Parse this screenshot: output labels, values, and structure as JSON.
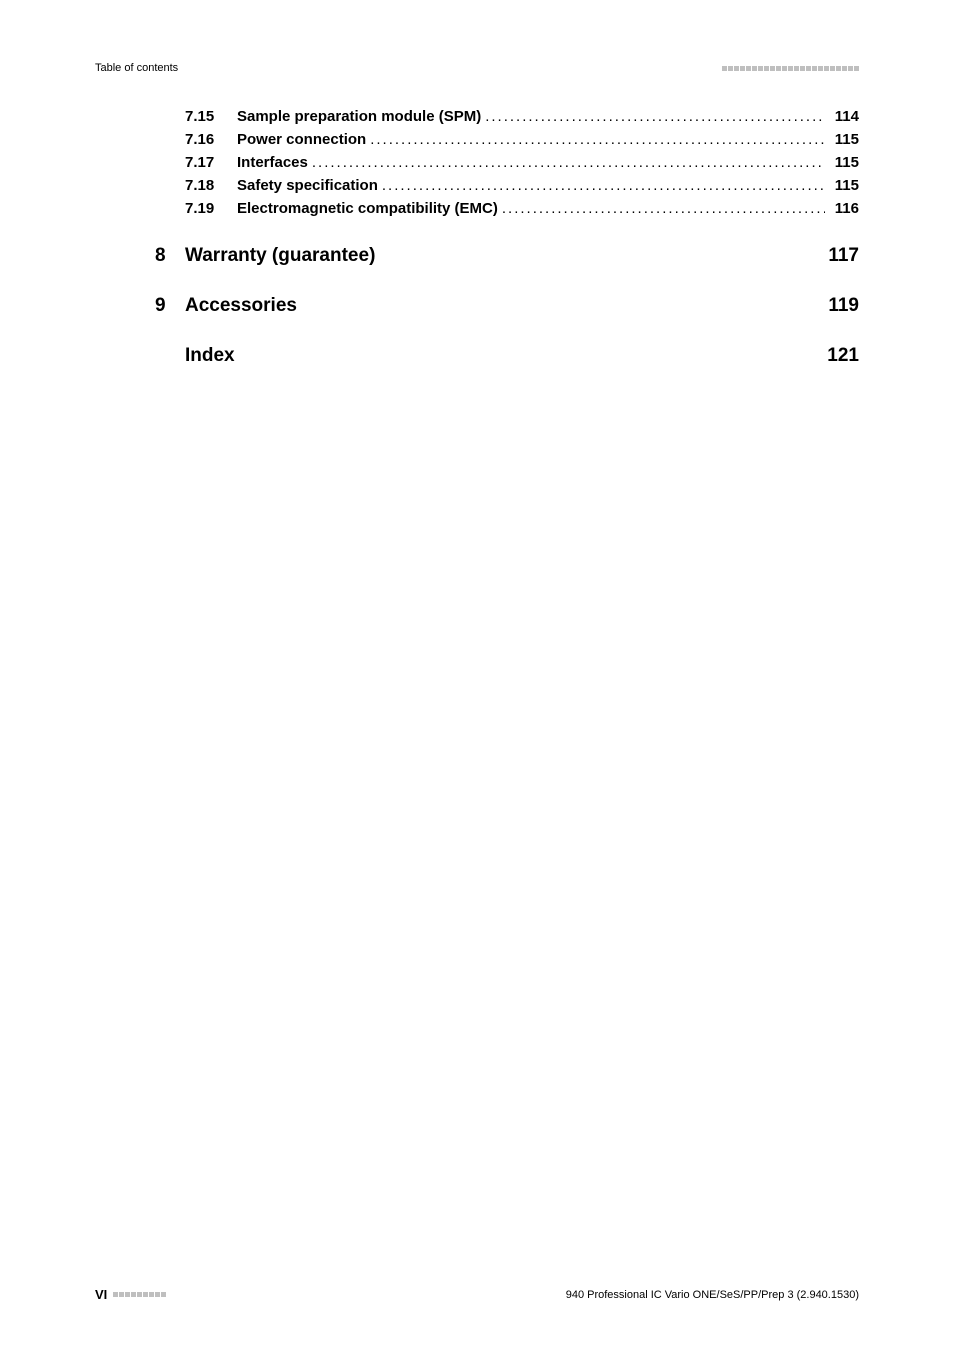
{
  "header": {
    "left": "Table of contents"
  },
  "toc_sub": [
    {
      "num": "7.15",
      "title": "Sample preparation module (SPM)",
      "bold_title": true,
      "page": "114"
    },
    {
      "num": "7.16",
      "title": "Power connection",
      "bold_title": true,
      "page": "115"
    },
    {
      "num": "7.17",
      "title": "Interfaces",
      "bold_title": true,
      "page": "115"
    },
    {
      "num": "7.18",
      "title": "Safety specification",
      "bold_title": true,
      "page": "115"
    },
    {
      "num": "7.19",
      "title": "Electromagnetic compatibility (EMC)",
      "bold_title": true,
      "page": "116"
    }
  ],
  "chapters": [
    {
      "num": "8",
      "title": "Warranty (guarantee)",
      "page": "117"
    },
    {
      "num": "9",
      "title": "Accessories",
      "page": "119"
    },
    {
      "num": "",
      "title": "Index",
      "page": "121"
    }
  ],
  "footer": {
    "left_num": "VI",
    "right": "940 Professional IC Vario ONE/SeS/PP/Prep 3 (2.940.1530)"
  },
  "style": {
    "dot_fill": "............................................................................................................................",
    "header_square_count": 23,
    "footer_square_count": 9
  }
}
